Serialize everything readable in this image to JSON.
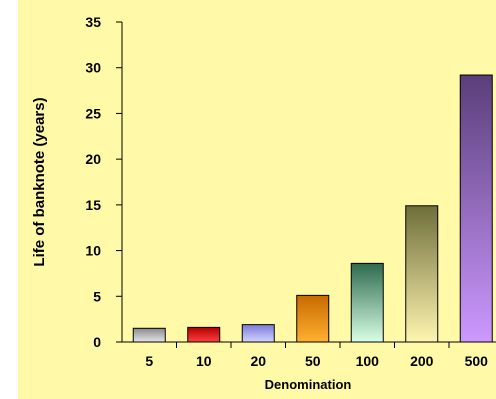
{
  "chart_data": {
    "type": "bar",
    "title": "",
    "xlabel": "Denomination",
    "ylabel": "Life of banknote (years)",
    "categories": [
      "5",
      "10",
      "20",
      "50",
      "100",
      "200",
      "500"
    ],
    "values": [
      1.5,
      1.6,
      1.9,
      5.1,
      8.6,
      14.9,
      29.2
    ],
    "ylim": [
      0,
      35
    ],
    "yticks": [
      "0",
      "5",
      "10",
      "15",
      "20",
      "25",
      "30",
      "35"
    ],
    "grid": false,
    "legend": "none",
    "background_color": "#fff9a8",
    "bar_colors": [
      [
        "#8a8a8a",
        "#e6e6e6"
      ],
      [
        "#b00000",
        "#ff4040"
      ],
      [
        "#7a7ad8",
        "#d4d4ff"
      ],
      [
        "#c86a00",
        "#ffb030"
      ],
      [
        "#2e6a4e",
        "#d8ffe6"
      ],
      [
        "#6e6e3a",
        "#fff5b0"
      ],
      [
        "#5a3e7a",
        "#cc99ff"
      ]
    ]
  }
}
